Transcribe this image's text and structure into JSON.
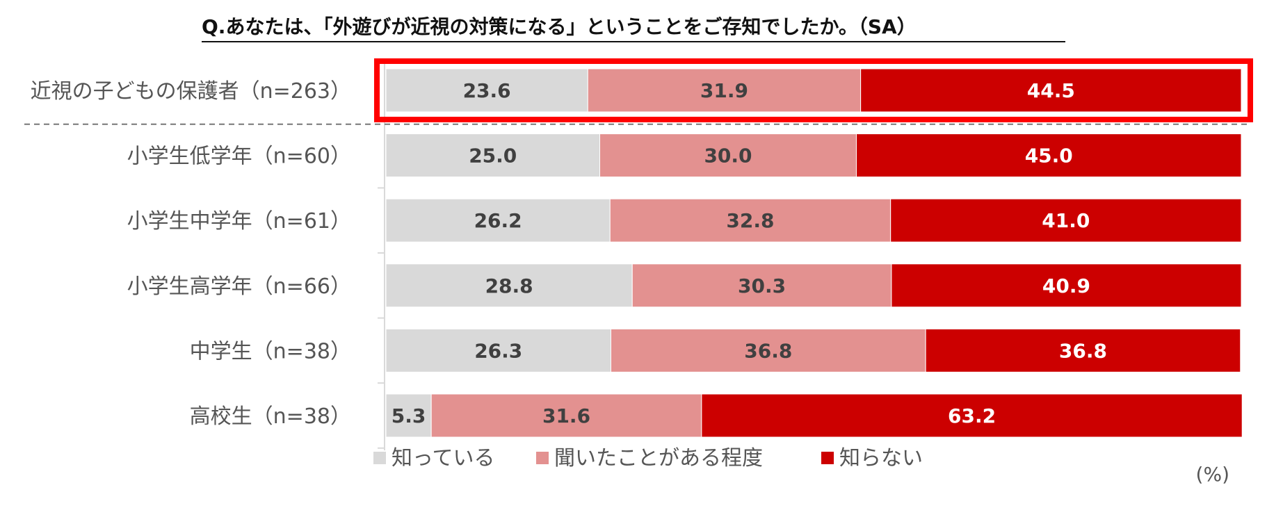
{
  "chart_data": {
    "type": "bar",
    "orientation": "horizontal",
    "stacked": true,
    "title": "Q.あなたは、「外遊びが近視の対策になる」ということをご存知でしたか。（SA）",
    "unit": "(%)",
    "categories": [
      "近視の子どもの保護者（n=263）",
      "小学生低学年（n=60）",
      "小学生中学年（n=61）",
      "小学生高学年（n=66）",
      "中学生（n=38）",
      "高校生（n=38）"
    ],
    "series": [
      {
        "name": "知っている",
        "color": "#d9d9d9",
        "label_color": "#404040",
        "values": [
          23.6,
          25.0,
          26.2,
          28.8,
          26.3,
          5.3
        ]
      },
      {
        "name": "聞いたことがある程度",
        "color": "#e39190",
        "label_color": "#404040",
        "values": [
          31.9,
          30.0,
          32.8,
          30.3,
          36.8,
          31.6
        ]
      },
      {
        "name": "知らない",
        "color": "#cc0000",
        "label_color": "#ffffff",
        "values": [
          44.5,
          45.0,
          41.0,
          40.9,
          36.8,
          63.2
        ]
      }
    ],
    "xlim": [
      0,
      100
    ],
    "legend_position": "bottom",
    "highlight_category": 0,
    "highlight_color": "#ff0000",
    "grid": false
  }
}
